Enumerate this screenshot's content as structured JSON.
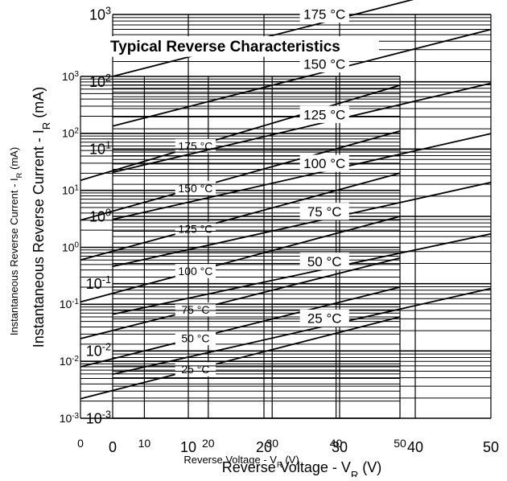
{
  "chart_data": [
    {
      "type": "line",
      "title": "",
      "xlabel": "Reverse Voltage - V_R (V)",
      "ylabel": "Instantaneous Reverse Current - I_R (mA)",
      "xlim": [
        0,
        50
      ],
      "ylim": [
        0.001,
        1000
      ],
      "y_scale": "log",
      "grid": true,
      "x_ticks": [
        "0",
        "10",
        "20",
        "30",
        "40",
        "50"
      ],
      "y_ticks": [
        "10-3",
        "10-2",
        "10-1",
        "100",
        "101",
        "102",
        "103"
      ],
      "series": [
        {
          "name": "175 °C",
          "x": [
            0,
            50
          ],
          "y": [
            15,
            700
          ]
        },
        {
          "name": "150 °C",
          "x": [
            0,
            50
          ],
          "y": [
            3,
            110
          ]
        },
        {
          "name": "125 °C",
          "x": [
            0,
            50
          ],
          "y": [
            0.6,
            20
          ]
        },
        {
          "name": "100 °C",
          "x": [
            0,
            50
          ],
          "y": [
            0.11,
            3.5
          ]
        },
        {
          "name": "75 °C",
          "x": [
            0,
            50
          ],
          "y": [
            0.025,
            0.65
          ]
        },
        {
          "name": "50 °C",
          "x": [
            0,
            50
          ],
          "y": [
            0.008,
            0.2
          ]
        },
        {
          "name": "25 °C",
          "x": [
            0,
            50
          ],
          "y": [
            0.0022,
            0.06
          ]
        }
      ]
    },
    {
      "type": "line",
      "title": "Typical Reverse Characteristics",
      "xlabel": "Reverse Voltage - V_R (V)",
      "ylabel": "Instantaneous Reverse Current - I_R (mA)",
      "xlim": [
        0,
        50
      ],
      "ylim": [
        0.001,
        1000
      ],
      "y_scale": "log",
      "grid": true,
      "x_ticks": [
        "0",
        "10",
        "20",
        "30",
        "40",
        "50"
      ],
      "y_ticks": [
        "10-3",
        "10-2",
        "10-1",
        "100",
        "101",
        "102",
        "103"
      ],
      "series": [
        {
          "name": "175 °C",
          "x": [
            0,
            50
          ],
          "y": [
            120,
            3300
          ]
        },
        {
          "name": "150 °C",
          "x": [
            0,
            50
          ],
          "y": [
            22,
            600
          ]
        },
        {
          "name": "125 °C",
          "x": [
            0,
            50
          ],
          "y": [
            4.5,
            95
          ]
        },
        {
          "name": "100 °C",
          "x": [
            0,
            50
          ],
          "y": [
            0.9,
            17
          ]
        },
        {
          "name": "75 °C",
          "x": [
            0,
            50
          ],
          "y": [
            0.18,
            3.2
          ]
        },
        {
          "name": "50 °C",
          "x": [
            0,
            50
          ],
          "y": [
            0.035,
            0.55
          ]
        },
        {
          "name": "25 °C",
          "x": [
            0,
            50
          ],
          "y": [
            0.0045,
            0.085
          ]
        }
      ]
    }
  ]
}
